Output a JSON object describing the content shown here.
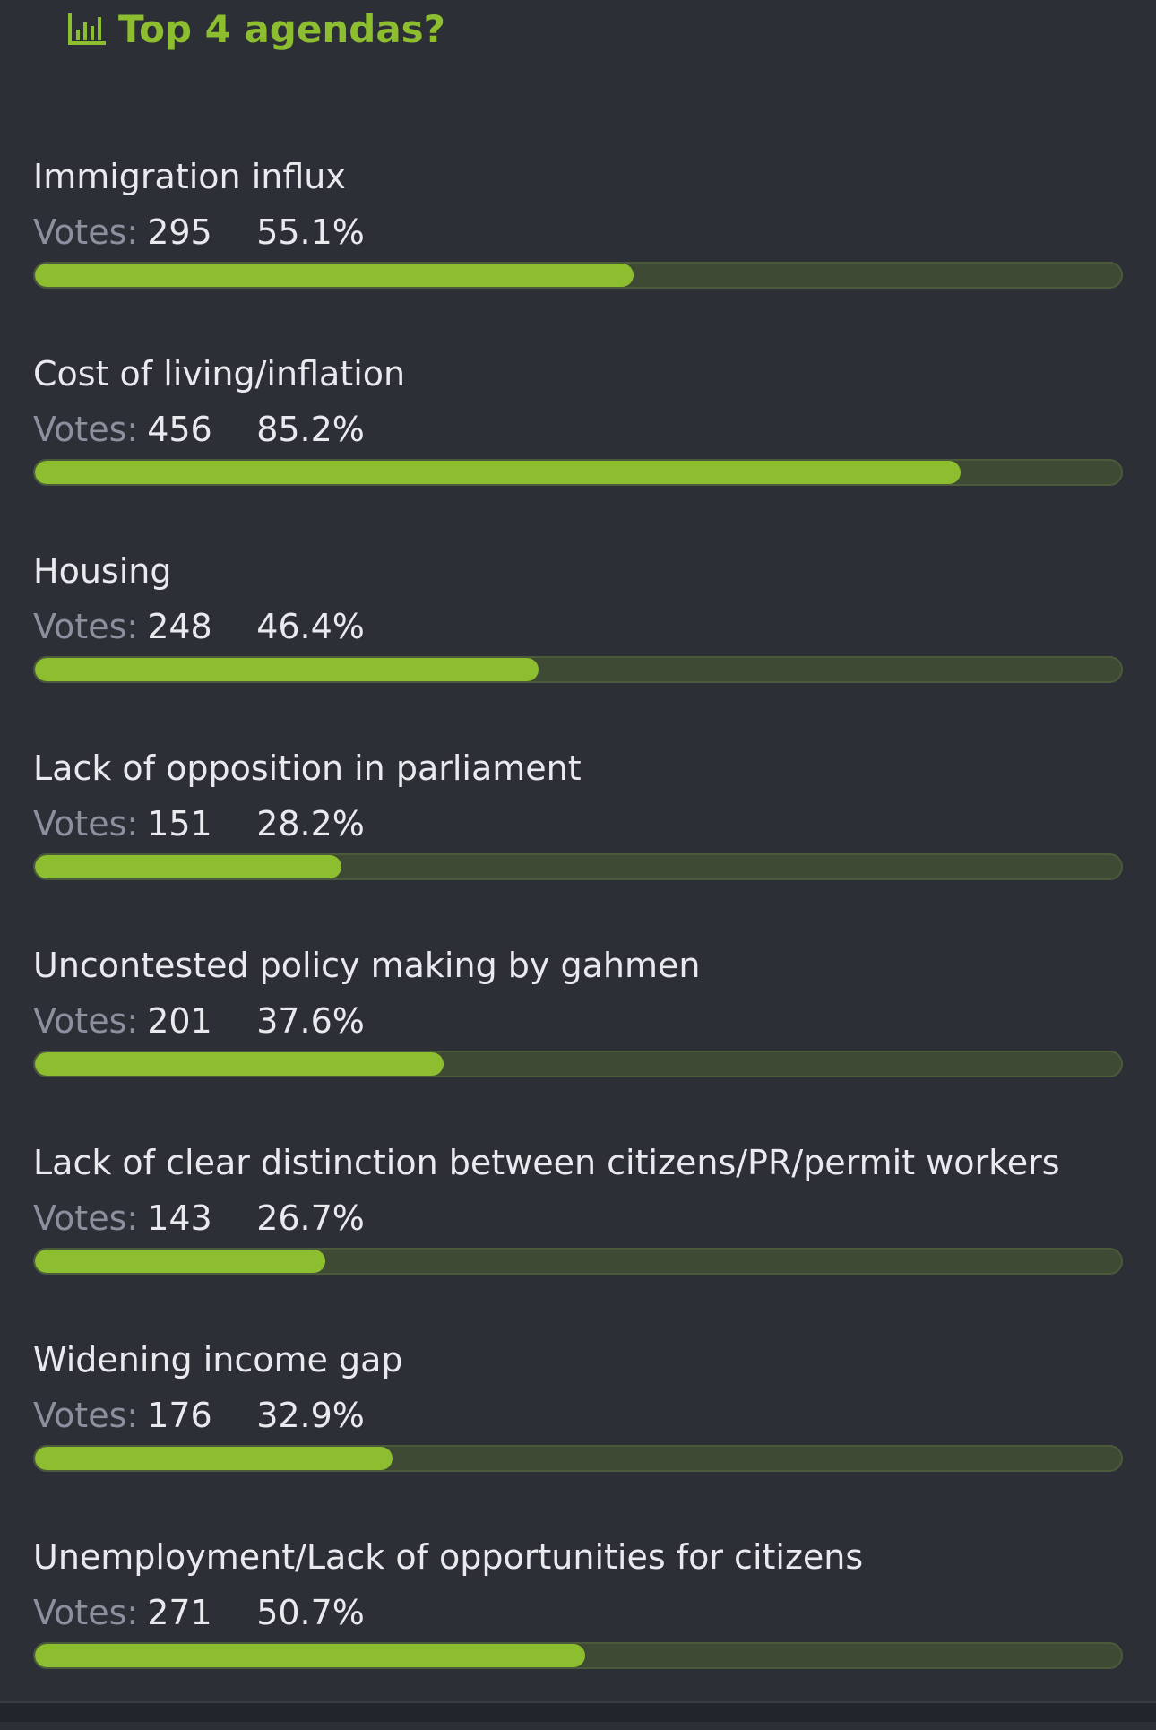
{
  "poll": {
    "title": "Top 4 agendas?",
    "icon": "bar-chart-icon",
    "votes_label": "Votes:",
    "colors": {
      "accent": "#8cbe2f",
      "background": "#2d2f37",
      "track": "#3e4a33",
      "text": "#e9eaee",
      "muted": "#8c909e"
    },
    "options": [
      {
        "label": "Immigration influx",
        "votes": "295",
        "percent": "55.1%",
        "fraction": 0.551
      },
      {
        "label": "Cost of living/inflation",
        "votes": "456",
        "percent": "85.2%",
        "fraction": 0.852
      },
      {
        "label": "Housing",
        "votes": "248",
        "percent": "46.4%",
        "fraction": 0.464
      },
      {
        "label": "Lack of opposition in parliament",
        "votes": "151",
        "percent": "28.2%",
        "fraction": 0.282
      },
      {
        "label": "Uncontested policy making by gahmen",
        "votes": "201",
        "percent": "37.6%",
        "fraction": 0.376
      },
      {
        "label": "Lack of clear distinction between citizens/PR/permit workers",
        "votes": "143",
        "percent": "26.7%",
        "fraction": 0.267
      },
      {
        "label": "Widening income gap",
        "votes": "176",
        "percent": "32.9%",
        "fraction": 0.329
      },
      {
        "label": "Unemployment/Lack of opportunities for citizens",
        "votes": "271",
        "percent": "50.7%",
        "fraction": 0.507
      }
    ]
  }
}
